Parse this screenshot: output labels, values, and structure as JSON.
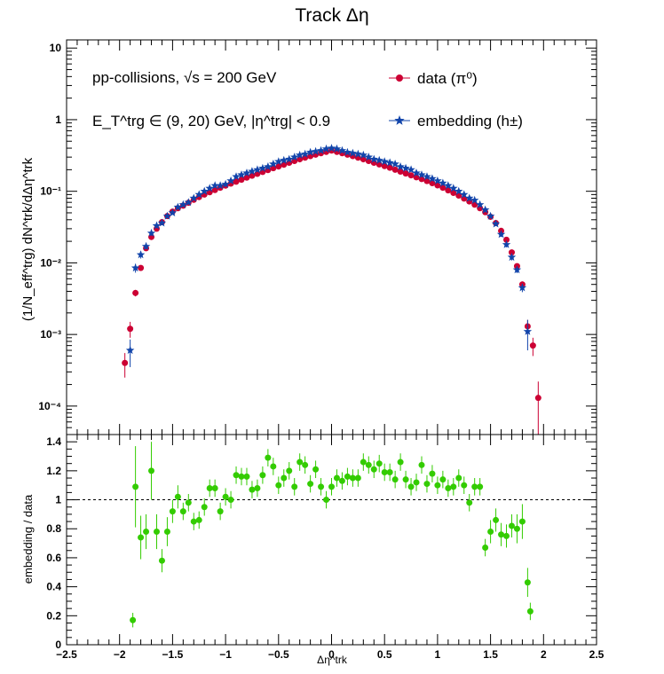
{
  "chart_data": [
    {
      "type": "scatter",
      "title": "Track Δη",
      "ylabel": "(1/N_eff^trg) dN^trk/dΔη^trk",
      "ylog": true,
      "ylim": [
        4e-05,
        13
      ],
      "xlim": [
        -2.5,
        2.5
      ],
      "x_ticks": [
        "−2.5",
        "−2",
        "−1.5",
        "−1",
        "−0.5",
        "0",
        "0.5",
        "1",
        "1.5",
        "2",
        "2.5"
      ],
      "y_ticks": [
        "10",
        "1",
        "10⁻¹",
        "10⁻²",
        "10⁻³",
        "10⁻⁴"
      ],
      "annotations": {
        "line1": "pp-collisions, √s = 200 GeV",
        "line2": "E_T^trg ∈ (9, 20) GeV, |η^trg| < 0.9"
      },
      "legend_position": "top-right",
      "series": [
        {
          "name": "data (π⁰)",
          "color": "#cc0033",
          "marker": "circle",
          "x": [
            -1.95,
            -1.9,
            -1.85,
            -1.8,
            -1.75,
            -1.7,
            -1.65,
            -1.6,
            -1.55,
            -1.5,
            -1.45,
            -1.4,
            -1.35,
            -1.3,
            -1.25,
            -1.2,
            -1.15,
            -1.1,
            -1.05,
            -1.0,
            -0.95,
            -0.9,
            -0.85,
            -0.8,
            -0.75,
            -0.7,
            -0.65,
            -0.6,
            -0.55,
            -0.5,
            -0.45,
            -0.4,
            -0.35,
            -0.3,
            -0.25,
            -0.2,
            -0.15,
            -0.1,
            -0.05,
            0.0,
            0.05,
            0.1,
            0.15,
            0.2,
            0.25,
            0.3,
            0.35,
            0.4,
            0.45,
            0.5,
            0.55,
            0.6,
            0.65,
            0.7,
            0.75,
            0.8,
            0.85,
            0.9,
            0.95,
            1.0,
            1.05,
            1.1,
            1.15,
            1.2,
            1.25,
            1.3,
            1.35,
            1.4,
            1.45,
            1.5,
            1.55,
            1.6,
            1.65,
            1.7,
            1.75,
            1.8,
            1.85,
            1.9,
            1.95
          ],
          "y": [
            0.0004,
            0.0012,
            0.0038,
            0.0085,
            0.016,
            0.023,
            0.03,
            0.037,
            0.045,
            0.052,
            0.058,
            0.063,
            0.069,
            0.076,
            0.083,
            0.09,
            0.097,
            0.104,
            0.112,
            0.12,
            0.128,
            0.136,
            0.145,
            0.155,
            0.165,
            0.175,
            0.186,
            0.198,
            0.21,
            0.222,
            0.235,
            0.25,
            0.265,
            0.28,
            0.295,
            0.31,
            0.325,
            0.34,
            0.355,
            0.37,
            0.355,
            0.34,
            0.325,
            0.31,
            0.295,
            0.28,
            0.265,
            0.25,
            0.237,
            0.225,
            0.213,
            0.2,
            0.188,
            0.177,
            0.167,
            0.157,
            0.148,
            0.139,
            0.13,
            0.121,
            0.112,
            0.103,
            0.095,
            0.087,
            0.079,
            0.072,
            0.065,
            0.058,
            0.051,
            0.044,
            0.036,
            0.028,
            0.021,
            0.014,
            0.009,
            0.005,
            0.0013,
            0.0007,
            0.00013
          ],
          "y_err": [
            0.00015,
            0.0003,
            0.0004,
            0.0006,
            0.001,
            0.001,
            0.001,
            0.001,
            0.001,
            0.001,
            0.001,
            0.001,
            0.001,
            0.001,
            0.001,
            0.001,
            0.001,
            0.001,
            0.001,
            0.001,
            0.001,
            0.001,
            0.001,
            0.001,
            0.001,
            0.001,
            0.001,
            0.001,
            0.001,
            0.001,
            0.001,
            0.001,
            0.001,
            0.001,
            0.001,
            0.001,
            0.001,
            0.001,
            0.001,
            0.001,
            0.001,
            0.001,
            0.001,
            0.001,
            0.001,
            0.001,
            0.001,
            0.001,
            0.001,
            0.001,
            0.001,
            0.001,
            0.001,
            0.001,
            0.001,
            0.001,
            0.001,
            0.001,
            0.001,
            0.001,
            0.001,
            0.001,
            0.001,
            0.001,
            0.001,
            0.001,
            0.001,
            0.001,
            0.001,
            0.001,
            0.001,
            0.001,
            0.001,
            0.001,
            0.0008,
            0.0005,
            0.0003,
            0.0002,
            9e-05
          ]
        },
        {
          "name": "embedding (h±)",
          "color": "#1144aa",
          "marker": "star",
          "x": [
            -1.9,
            -1.85,
            -1.8,
            -1.75,
            -1.7,
            -1.65,
            -1.6,
            -1.55,
            -1.5,
            -1.45,
            -1.4,
            -1.35,
            -1.3,
            -1.25,
            -1.2,
            -1.15,
            -1.1,
            -1.05,
            -1.0,
            -0.95,
            -0.9,
            -0.85,
            -0.8,
            -0.75,
            -0.7,
            -0.65,
            -0.6,
            -0.55,
            -0.5,
            -0.45,
            -0.4,
            -0.35,
            -0.3,
            -0.25,
            -0.2,
            -0.15,
            -0.1,
            -0.05,
            0.0,
            0.05,
            0.1,
            0.15,
            0.2,
            0.25,
            0.3,
            0.35,
            0.4,
            0.45,
            0.5,
            0.55,
            0.6,
            0.65,
            0.7,
            0.75,
            0.8,
            0.85,
            0.9,
            0.95,
            1.0,
            1.05,
            1.1,
            1.15,
            1.2,
            1.25,
            1.3,
            1.35,
            1.4,
            1.45,
            1.5,
            1.55,
            1.6,
            1.65,
            1.7,
            1.75,
            1.8,
            1.85
          ],
          "y": [
            0.0006,
            0.0085,
            0.013,
            0.017,
            0.026,
            0.033,
            0.036,
            0.045,
            0.05,
            0.06,
            0.065,
            0.07,
            0.08,
            0.09,
            0.1,
            0.11,
            0.12,
            0.12,
            0.125,
            0.14,
            0.16,
            0.17,
            0.18,
            0.19,
            0.2,
            0.21,
            0.22,
            0.24,
            0.26,
            0.27,
            0.28,
            0.3,
            0.32,
            0.33,
            0.35,
            0.36,
            0.37,
            0.39,
            0.4,
            0.39,
            0.37,
            0.35,
            0.34,
            0.33,
            0.32,
            0.3,
            0.28,
            0.27,
            0.26,
            0.25,
            0.24,
            0.22,
            0.21,
            0.2,
            0.18,
            0.17,
            0.16,
            0.15,
            0.14,
            0.13,
            0.12,
            0.11,
            0.1,
            0.09,
            0.08,
            0.075,
            0.065,
            0.055,
            0.045,
            0.035,
            0.025,
            0.018,
            0.012,
            0.008,
            0.0045,
            0.0011
          ],
          "y_err": [
            0.00025,
            0.0012,
            0.0015,
            0.0015,
            0.002,
            0.002,
            0.002,
            0.002,
            0.002,
            0.002,
            0.002,
            0.002,
            0.002,
            0.002,
            0.002,
            0.002,
            0.002,
            0.002,
            0.002,
            0.002,
            0.002,
            0.002,
            0.002,
            0.002,
            0.002,
            0.002,
            0.002,
            0.002,
            0.002,
            0.002,
            0.002,
            0.002,
            0.002,
            0.002,
            0.002,
            0.002,
            0.002,
            0.002,
            0.002,
            0.002,
            0.002,
            0.002,
            0.002,
            0.002,
            0.002,
            0.002,
            0.002,
            0.002,
            0.002,
            0.002,
            0.002,
            0.002,
            0.002,
            0.002,
            0.002,
            0.002,
            0.002,
            0.002,
            0.002,
            0.002,
            0.002,
            0.002,
            0.002,
            0.002,
            0.002,
            0.002,
            0.002,
            0.002,
            0.002,
            0.002,
            0.002,
            0.0015,
            0.0012,
            0.0008,
            0.0006,
            0.0005
          ]
        }
      ]
    },
    {
      "type": "scatter",
      "xlabel": "Δη^trk",
      "ylabel": "embedding / data",
      "xlim": [
        -2.5,
        2.5
      ],
      "ylim": [
        0,
        1.45
      ],
      "x_ticks": [
        "−2.5",
        "−2",
        "−1.5",
        "−1",
        "−0.5",
        "0",
        "0.5",
        "1",
        "1.5",
        "2",
        "2.5"
      ],
      "y_ticks": [
        "0",
        "0.2",
        "0.4",
        "0.6",
        "0.8",
        "1",
        "1.2",
        "1.4"
      ],
      "reference_line": 1.0,
      "series": [
        {
          "color": "#33cc00",
          "marker": "circle",
          "x": [
            -1.875,
            -1.85,
            -1.8,
            -1.75,
            -1.7,
            -1.65,
            -1.6,
            -1.55,
            -1.5,
            -1.45,
            -1.4,
            -1.35,
            -1.3,
            -1.25,
            -1.2,
            -1.15,
            -1.1,
            -1.05,
            -1.0,
            -0.95,
            -0.9,
            -0.85,
            -0.8,
            -0.75,
            -0.7,
            -0.65,
            -0.6,
            -0.55,
            -0.5,
            -0.45,
            -0.4,
            -0.35,
            -0.3,
            -0.25,
            -0.2,
            -0.15,
            -0.1,
            -0.05,
            0.0,
            0.05,
            0.1,
            0.15,
            0.2,
            0.25,
            0.3,
            0.35,
            0.4,
            0.45,
            0.5,
            0.55,
            0.6,
            0.65,
            0.7,
            0.75,
            0.8,
            0.85,
            0.9,
            0.95,
            1.0,
            1.05,
            1.1,
            1.15,
            1.2,
            1.25,
            1.3,
            1.35,
            1.4,
            1.45,
            1.5,
            1.55,
            1.6,
            1.65,
            1.7,
            1.75,
            1.8,
            1.85,
            1.875
          ],
          "y": [
            0.17,
            1.09,
            0.74,
            0.78,
            1.2,
            0.78,
            0.58,
            0.78,
            0.92,
            1.02,
            0.92,
            0.98,
            0.85,
            0.86,
            0.95,
            1.08,
            1.08,
            0.92,
            1.02,
            1.0,
            1.17,
            1.16,
            1.16,
            1.07,
            1.08,
            1.17,
            1.29,
            1.23,
            1.1,
            1.15,
            1.2,
            1.09,
            1.26,
            1.24,
            1.11,
            1.21,
            1.09,
            1.0,
            1.09,
            1.15,
            1.13,
            1.16,
            1.15,
            1.15,
            1.26,
            1.24,
            1.21,
            1.25,
            1.19,
            1.19,
            1.14,
            1.26,
            1.14,
            1.09,
            1.12,
            1.24,
            1.11,
            1.18,
            1.1,
            1.14,
            1.08,
            1.09,
            1.15,
            1.1,
            0.98,
            1.09,
            1.09,
            0.67,
            0.78,
            0.86,
            0.76,
            0.75,
            0.82,
            0.8,
            0.85,
            0.43,
            0.23
          ],
          "y_err": [
            0.05,
            0.28,
            0.15,
            0.12,
            0.2,
            0.12,
            0.08,
            0.1,
            0.08,
            0.08,
            0.06,
            0.06,
            0.06,
            0.06,
            0.06,
            0.06,
            0.06,
            0.06,
            0.06,
            0.06,
            0.06,
            0.06,
            0.06,
            0.06,
            0.06,
            0.06,
            0.06,
            0.06,
            0.06,
            0.06,
            0.06,
            0.06,
            0.06,
            0.06,
            0.06,
            0.06,
            0.06,
            0.06,
            0.06,
            0.06,
            0.06,
            0.06,
            0.06,
            0.06,
            0.06,
            0.06,
            0.06,
            0.06,
            0.06,
            0.06,
            0.06,
            0.06,
            0.06,
            0.06,
            0.06,
            0.06,
            0.06,
            0.06,
            0.06,
            0.06,
            0.06,
            0.06,
            0.06,
            0.06,
            0.06,
            0.06,
            0.06,
            0.06,
            0.08,
            0.08,
            0.08,
            0.08,
            0.08,
            0.1,
            0.12,
            0.1,
            0.06
          ]
        }
      ]
    }
  ]
}
